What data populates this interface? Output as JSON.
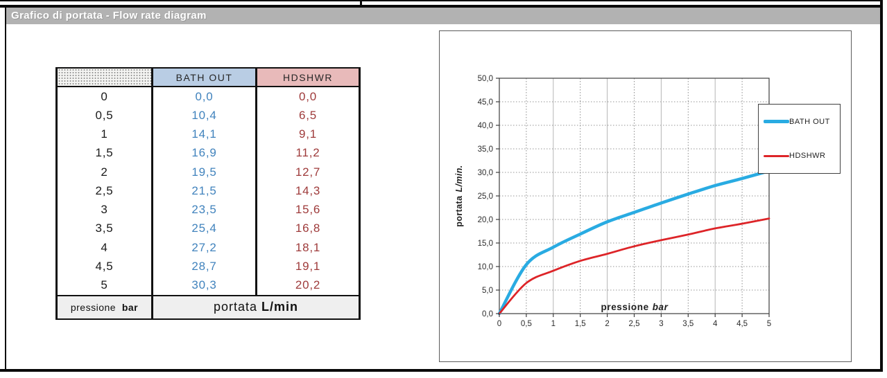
{
  "page": {
    "section_title": "Grafico di portata - Flow rate diagram",
    "title_bar_bg": "#b2b2b2"
  },
  "table": {
    "col_headers": [
      "",
      "BATH OUT",
      "HDSHWR"
    ],
    "header_bg": {
      "bath_out": "#b9cde4",
      "hdshwr": "#e8baba"
    },
    "value_colors": {
      "pressure": "#1a1a1a",
      "bath_out": "#4183bd",
      "hdshwr": "#9e3a3a"
    },
    "rows": [
      [
        "0",
        "0,0",
        "0,0"
      ],
      [
        "0,5",
        "10,4",
        "6,5"
      ],
      [
        "1",
        "14,1",
        "9,1"
      ],
      [
        "1,5",
        "16,9",
        "11,2"
      ],
      [
        "2",
        "19,5",
        "12,7"
      ],
      [
        "2,5",
        "21,5",
        "14,3"
      ],
      [
        "3",
        "23,5",
        "15,6"
      ],
      [
        "3,5",
        "25,4",
        "16,8"
      ],
      [
        "4",
        "27,2",
        "18,1"
      ],
      [
        "4,5",
        "28,7",
        "19,1"
      ],
      [
        "5",
        "30,3",
        "20,2"
      ]
    ],
    "footer": {
      "left_label": "pressione",
      "left_unit": "bar",
      "right_label": "portata",
      "right_unit": "L/min"
    }
  },
  "chart_data": {
    "type": "line",
    "x": [
      0,
      0.5,
      1,
      1.5,
      2,
      2.5,
      3,
      3.5,
      4,
      4.5,
      5
    ],
    "series": [
      {
        "name": "BATH OUT",
        "color": "#29abe2",
        "values": [
          0,
          10.4,
          14.1,
          16.9,
          19.5,
          21.5,
          23.5,
          25.4,
          27.2,
          28.7,
          30.3
        ]
      },
      {
        "name": "HDSHWR",
        "color": "#dd2428",
        "values": [
          0,
          6.5,
          9.1,
          11.2,
          12.7,
          14.3,
          15.6,
          16.8,
          18.1,
          19.1,
          20.2
        ]
      }
    ],
    "xlabel": {
      "main": "pressione",
      "unit": "bar"
    },
    "ylabel": {
      "main": "portata",
      "unit": "L/min."
    },
    "xlim": [
      0,
      5
    ],
    "ylim": [
      0,
      50
    ],
    "xtick_step": 0.5,
    "ytick_step": 5,
    "xtick_labels": [
      "0",
      "0,5",
      "1",
      "1,5",
      "2",
      "2,5",
      "3",
      "3,5",
      "4",
      "4,5",
      "5"
    ],
    "ytick_labels": [
      "0,0",
      "5,0",
      "10,0",
      "15,0",
      "20,0",
      "25,0",
      "30,0",
      "35,0",
      "40,0",
      "45,0",
      "50,0"
    ],
    "grid": "on",
    "legend_position": "right-overlapping-plot"
  }
}
